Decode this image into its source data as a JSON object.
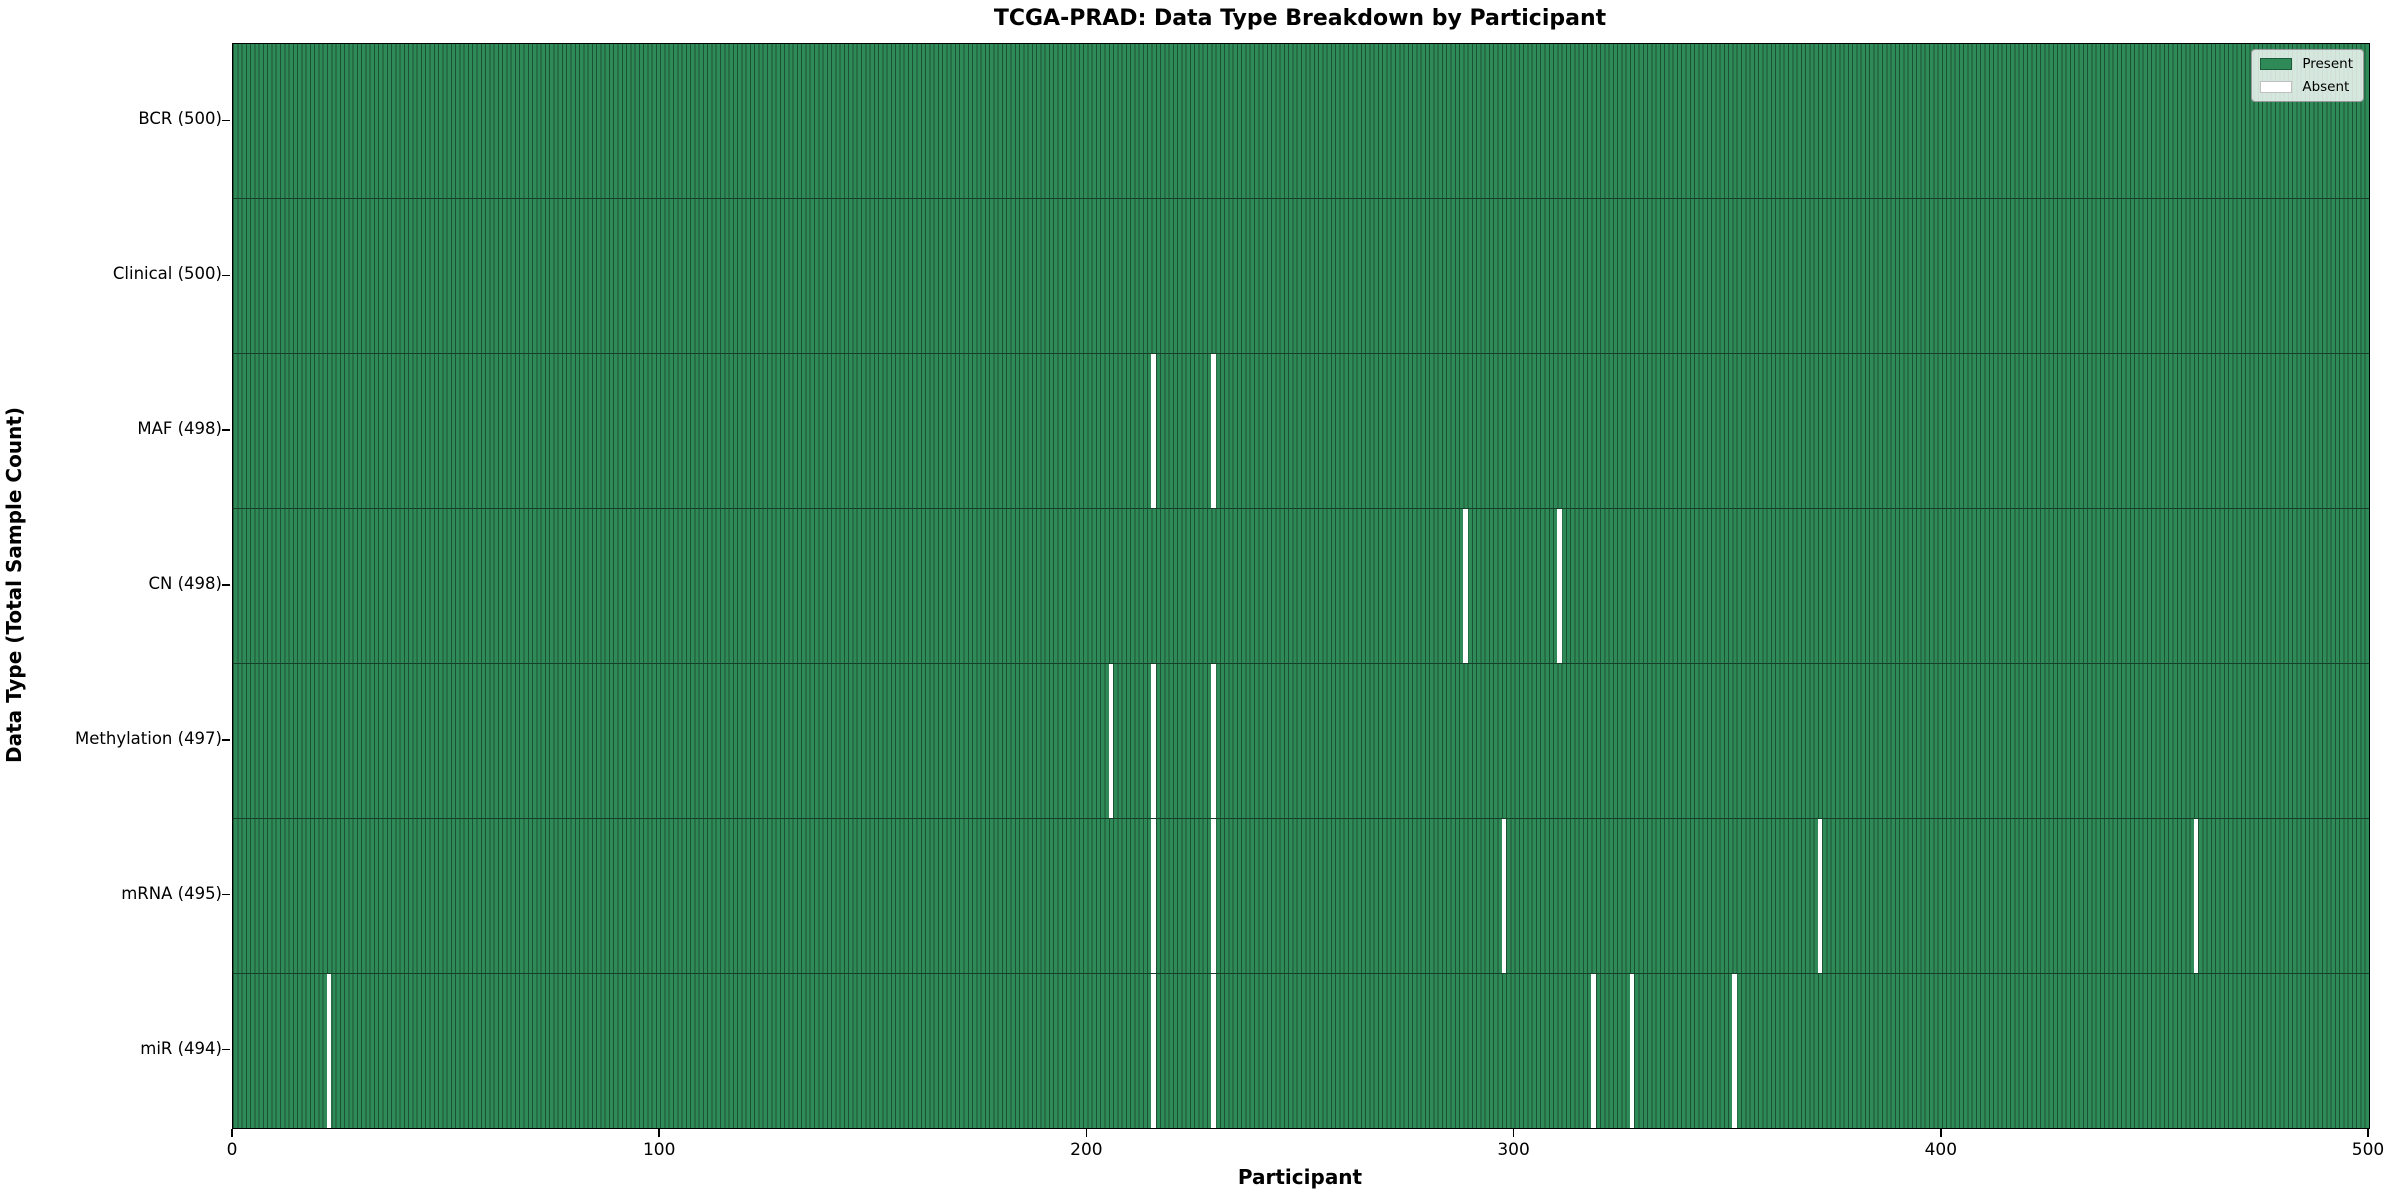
{
  "title": "TCGA-PRAD: Data Type Breakdown by Participant",
  "xlabel": "Participant",
  "ylabel": "Data Type (Total Sample Count)",
  "legend": {
    "position": "upper right",
    "present_label": "Present",
    "absent_label": "Absent"
  },
  "colors": {
    "present": "#2e8b57",
    "absent": "#ffffff",
    "bar_edge": "#1c5234",
    "plot_border": "#000000"
  },
  "chart_data": {
    "type": "heatmap",
    "title": "TCGA-PRAD: Data Type Breakdown by Participant",
    "xlabel": "Participant",
    "ylabel": "Data Type (Total Sample Count)",
    "xlim": [
      0,
      500
    ],
    "x_ticks": [
      0,
      100,
      200,
      300,
      400,
      500
    ],
    "n_participants": 500,
    "grid": false,
    "legend_entries": [
      "Present",
      "Absent"
    ],
    "legend_position": "upper right",
    "rows": [
      {
        "name": "bcr",
        "label": "BCR (500)",
        "total": 500,
        "absent_participants": []
      },
      {
        "name": "clinical",
        "label": "Clinical (500)",
        "total": 500,
        "absent_participants": []
      },
      {
        "name": "maf",
        "label": "MAF (498)",
        "total": 498,
        "absent_participants": [
          215,
          229
        ]
      },
      {
        "name": "cn",
        "label": "CN (498)",
        "total": 498,
        "absent_participants": [
          288,
          310
        ]
      },
      {
        "name": "methylation",
        "label": "Methylation (497)",
        "total": 497,
        "absent_participants": [
          205,
          215,
          229
        ]
      },
      {
        "name": "mrna",
        "label": "mRNA (495)",
        "total": 495,
        "absent_participants": [
          215,
          229,
          297,
          371,
          459
        ]
      },
      {
        "name": "mir",
        "label": "miR (494)",
        "total": 494,
        "absent_participants": [
          22,
          215,
          229,
          318,
          327,
          351
        ]
      }
    ]
  }
}
